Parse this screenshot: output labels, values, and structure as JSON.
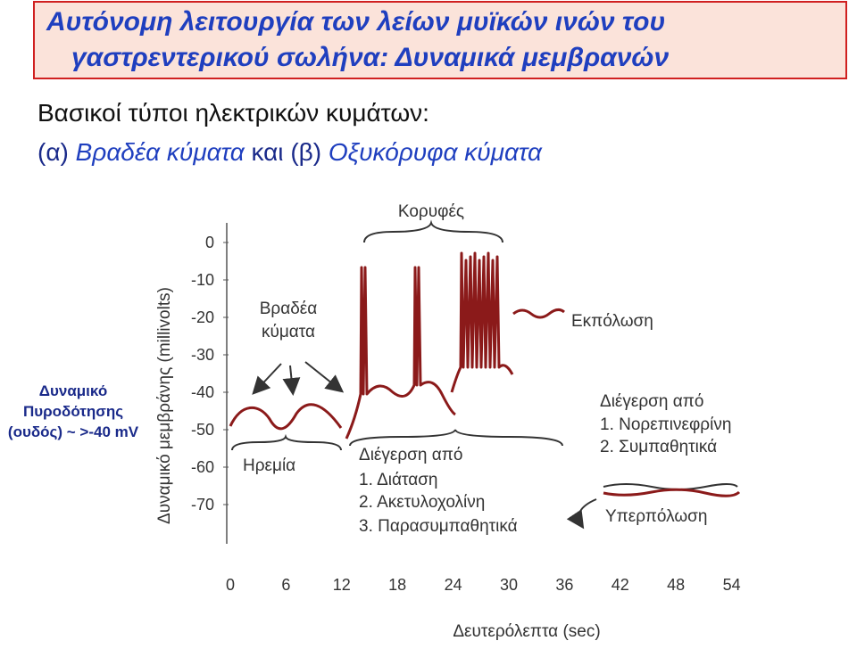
{
  "header": {
    "title_lines": [
      "Αυτόνομη λειτουργία των λείων μυϊκών ινών του",
      "γαστρεντερικού σωλήνα: Δυναμικά μεμβρανών"
    ]
  },
  "heading": "Βασικοί τύποι ηλεκτρικών κυμάτων:",
  "subtitle": {
    "parts": [
      "(α)",
      "Βραδέα κύματα",
      "και",
      "(β)",
      "Οξυκόρυφα κύματα"
    ]
  },
  "figure": {
    "y_axis_label": "Δυναμικό μεμβράνης (millivolts)",
    "x_axis_label": "Δευτερόλεπτα (sec)",
    "yticks": [
      0,
      -10,
      -20,
      -30,
      -40,
      -50,
      -60,
      -70
    ],
    "xticks": [
      0,
      6,
      12,
      18,
      24,
      30,
      36,
      42,
      48,
      54
    ],
    "annotations": {
      "spikes": "Κορυφές",
      "slow_waves": [
        "Βραδέα",
        "κύματα"
      ],
      "depolarization": "Εκπόλωση",
      "rest": "Ηρεμία",
      "stimulation_1": [
        "Διέγερση από",
        "1. Διάταση",
        "2. Ακετυλοχολίνη",
        "3. Παρασυμπαθητικά"
      ],
      "stimulation_2": [
        "Διέγερση από",
        "1. Νορεπινεφρίνη",
        "2. Συμπαθητικά"
      ],
      "hyperpolarization": "Υπερπόλωση"
    }
  },
  "side_note": {
    "lines": [
      "Δυναμικό",
      "Πυροδότησης",
      "(ουδός) ~ >-40 mV"
    ]
  }
}
